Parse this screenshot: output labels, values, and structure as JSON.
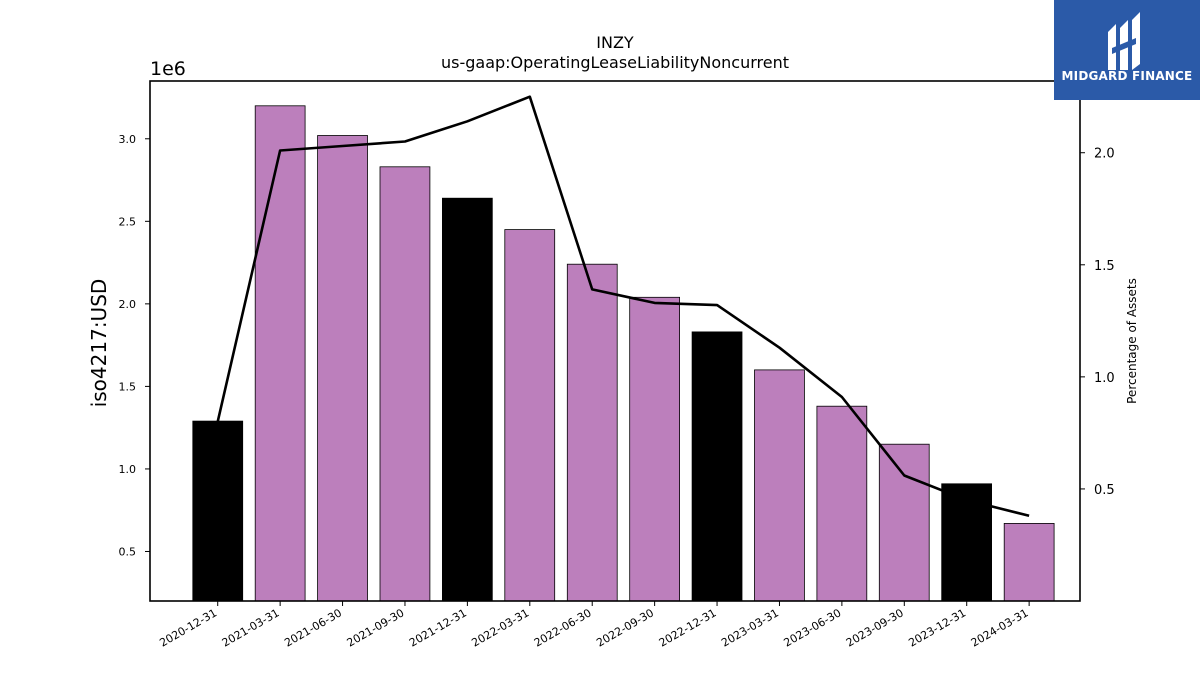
{
  "chart_data": {
    "type": "bar",
    "title": "INZY",
    "subtitle": "us-gaap:OperatingLeaseLiabilityNoncurrent",
    "ylabel": "iso4217:USD",
    "y_offset_label": "1e6",
    "y2label": "Percentage of Assets",
    "categories": [
      "2020-12-31",
      "2021-03-31",
      "2021-06-30",
      "2021-09-30",
      "2021-12-31",
      "2022-03-31",
      "2022-06-30",
      "2022-09-30",
      "2022-12-31",
      "2023-03-31",
      "2023-06-30",
      "2023-09-30",
      "2023-12-31",
      "2024-03-31"
    ],
    "series": [
      {
        "values": [
          1290000,
          3200000,
          3020000,
          2830000,
          2640000,
          2450000,
          2240000,
          2040000,
          1830000,
          1600000,
          1380000,
          1150000,
          910000,
          670000
        ],
        "axis": "left"
      },
      {
        "type": "line",
        "values": [
          0.8,
          2.01,
          2.03,
          2.05,
          2.14,
          2.25,
          1.39,
          1.33,
          1.32,
          1.13,
          0.91,
          0.56,
          0.45,
          0.38
        ],
        "axis": "right"
      }
    ],
    "bar_colors": [
      "#000000",
      "#bc7fbc",
      "#bc7fbc",
      "#bc7fbc",
      "#000000",
      "#bc7fbc",
      "#bc7fbc",
      "#bc7fbc",
      "#000000",
      "#bc7fbc",
      "#bc7fbc",
      "#bc7fbc",
      "#000000",
      "#bc7fbc"
    ],
    "line_color": "#000000",
    "ylim": [
      200000,
      3350000
    ],
    "y_ticks": [
      500000,
      1000000,
      1500000,
      2000000,
      2500000,
      3000000
    ],
    "y_tick_labels": [
      "0.5",
      "1.0",
      "1.5",
      "2.0",
      "2.5",
      "3.0"
    ],
    "y2lim": [
      0.0,
      2.32
    ],
    "y2_ticks": [
      0.5,
      1.0,
      1.5,
      2.0
    ],
    "y2_tick_labels": [
      "0.5",
      "1.0",
      "1.5",
      "2.0"
    ],
    "grid": false,
    "legend": "none"
  },
  "logo": {
    "text": "MIDGARD FINANCE",
    "background": "#2b5aa8"
  }
}
